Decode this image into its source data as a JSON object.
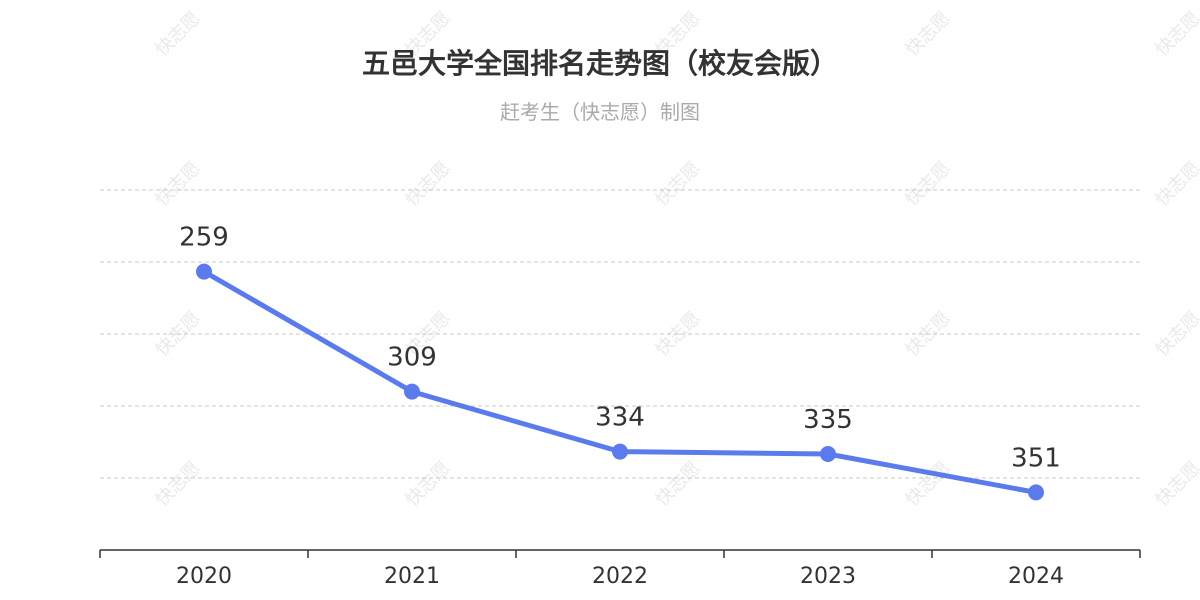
{
  "title": "五邑大学全国排名走势图（校友会版）",
  "subtitle": "赶考生（快志愿）制图",
  "watermark": "快志愿",
  "colors": {
    "line": "#5b7bed",
    "grid": "#c8c8c8",
    "axis": "#333333",
    "text": "#333333"
  },
  "chart_data": {
    "type": "line",
    "title": "五邑大学全国排名走势图（校友会版）",
    "subtitle": "赶考生（快志愿）制图",
    "categories": [
      "2020",
      "2021",
      "2022",
      "2023",
      "2024"
    ],
    "series": [
      {
        "values": [
          259,
          309,
          334,
          335,
          351
        ]
      }
    ],
    "ylim": [
      225,
      375
    ],
    "y_inverted": true,
    "grid": true,
    "data_labels": true,
    "y_tick_labels_visible": false
  }
}
